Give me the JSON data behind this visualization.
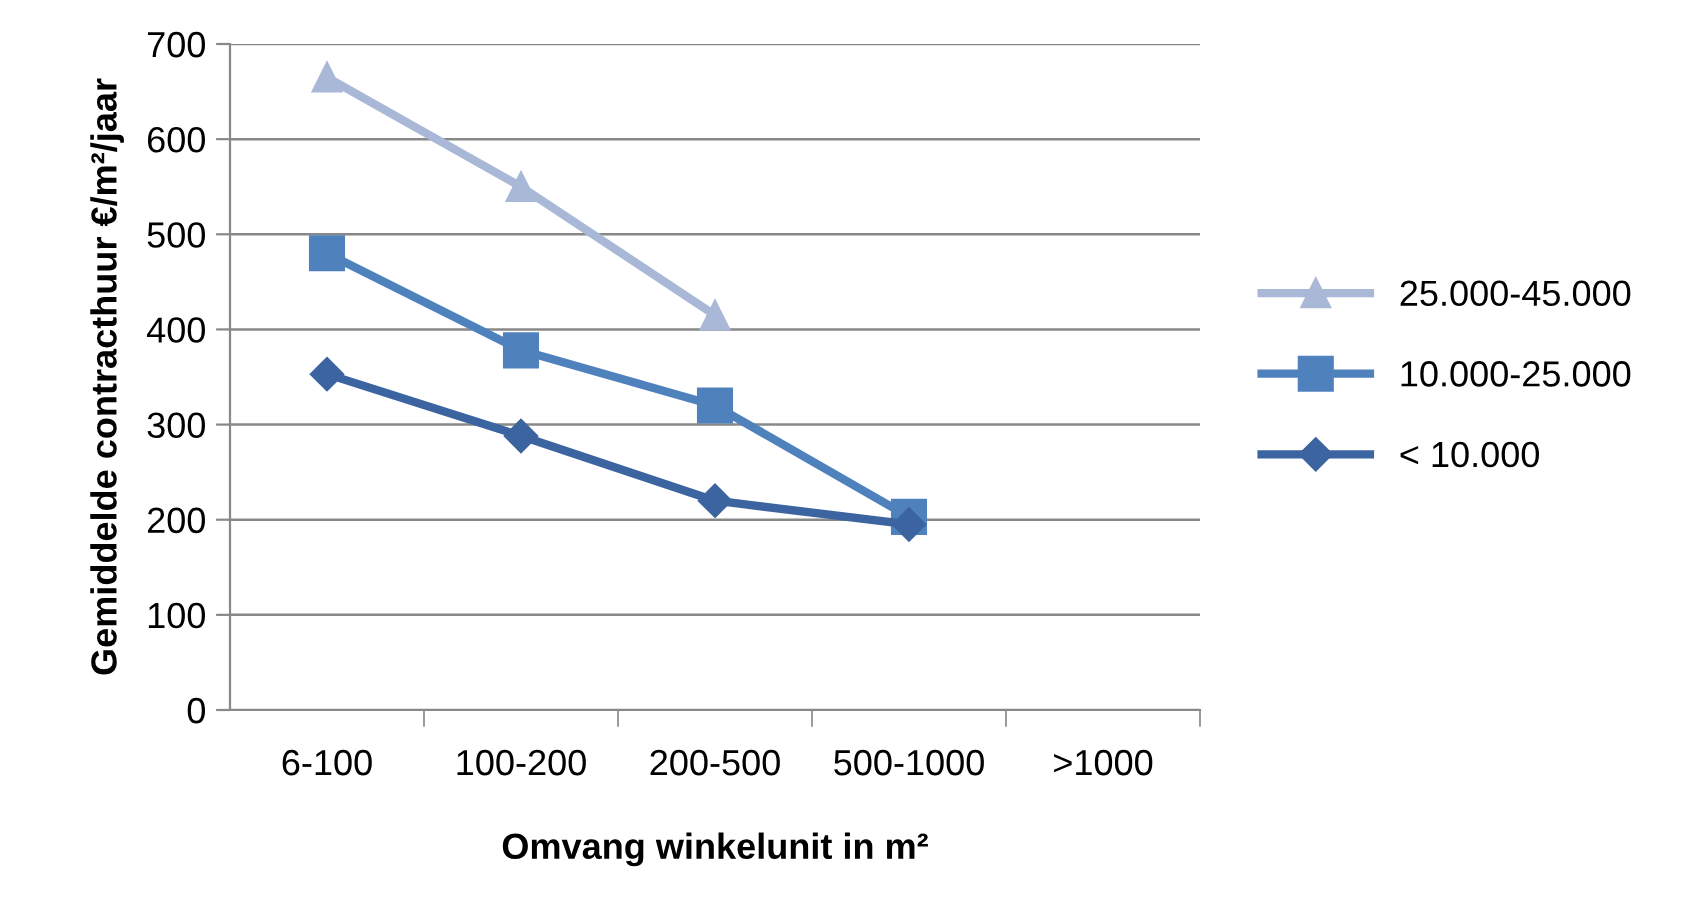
{
  "chart_data": {
    "type": "line",
    "xlabel": "Omvang winkelunit in m²",
    "ylabel": "Gemiddelde contracthuur €/m²/jaar",
    "categories": [
      "6-100",
      "100-200",
      "200-500",
      "500-1000",
      ">1000"
    ],
    "ylim": [
      0,
      700
    ],
    "yticks": [
      0,
      100,
      200,
      300,
      400,
      500,
      600,
      700
    ],
    "grid": "y",
    "legend": "right",
    "series": [
      {
        "name": "25.000-45.000",
        "color": "#a9b8d6",
        "marker": "triangle",
        "values": [
          665,
          550,
          415,
          null,
          null
        ]
      },
      {
        "name": "10.000-25.000",
        "color": "#4f81bd",
        "marker": "square",
        "values": [
          480,
          378,
          320,
          203,
          null
        ]
      },
      {
        "name": "< 10.000",
        "color": "#3c64a0",
        "marker": "diamond",
        "values": [
          353,
          288,
          220,
          195,
          null
        ]
      }
    ]
  }
}
